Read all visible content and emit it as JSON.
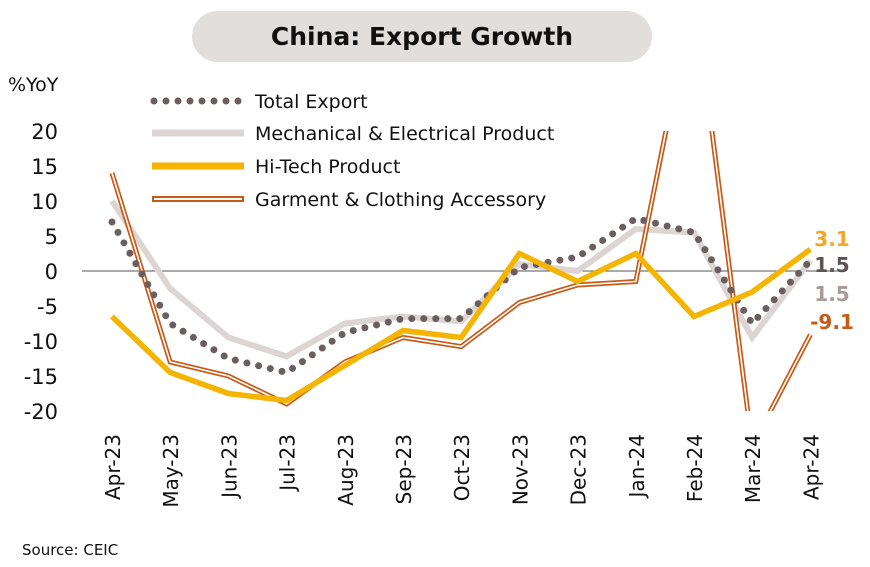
{
  "title": "China: Export Growth",
  "y_unit": "%YoY",
  "source": "Source: CEIC",
  "chart_data": {
    "type": "line",
    "x": [
      "Apr-23",
      "May-23",
      "Jun-23",
      "Jul-23",
      "Aug-23",
      "Sep-23",
      "Oct-23",
      "Nov-23",
      "Dec-23",
      "Jan-24",
      "Feb-24",
      "Mar-24",
      "Apr-24"
    ],
    "ylim": [
      -20,
      20
    ],
    "yticks": [
      20,
      15,
      10,
      5,
      0,
      -5,
      -10,
      -15,
      -20
    ],
    "zero_line": true,
    "legend_position": "top-left",
    "series": [
      {
        "name": "Total Export",
        "color": "#6b5e5e",
        "style": "dotted",
        "values": [
          7,
          -7.5,
          -12.5,
          -14.5,
          -8.8,
          -6.8,
          -6.8,
          0.5,
          2,
          7.5,
          5.5,
          -7.5,
          1.5
        ]
      },
      {
        "name": "Mechanical & Electrical Product",
        "color": "#ddd5d3",
        "style": "solid",
        "values": [
          10,
          -2.5,
          -9.5,
          -12.2,
          -7.5,
          -6.5,
          -7.2,
          1,
          0,
          6,
          5.5,
          -9.5,
          1.5
        ]
      },
      {
        "name": " Hi-Tech Product",
        "color": "#f5b400",
        "style": "solid",
        "values": [
          -6.5,
          -14.5,
          -17.5,
          -18.5,
          -13.5,
          -8.5,
          -9.5,
          2.5,
          -1.5,
          2.5,
          -6.5,
          -3,
          3.1
        ]
      },
      {
        "name": "Garment & Clothing Accessory",
        "color": "#c85a17",
        "style": "double",
        "values": [
          14,
          -13,
          -15,
          -19,
          -13,
          -9.5,
          -10.8,
          -4.5,
          -2,
          -1.5,
          40,
          -25,
          -9.1
        ]
      }
    ],
    "end_labels": [
      {
        "text": "3.1",
        "color": "#f5a623"
      },
      {
        "text": "1.5",
        "color": "#5e5252"
      },
      {
        "text": "1.5",
        "color": "#a89a97"
      },
      {
        "text": "-9.1",
        "color": "#c85a17"
      }
    ]
  }
}
